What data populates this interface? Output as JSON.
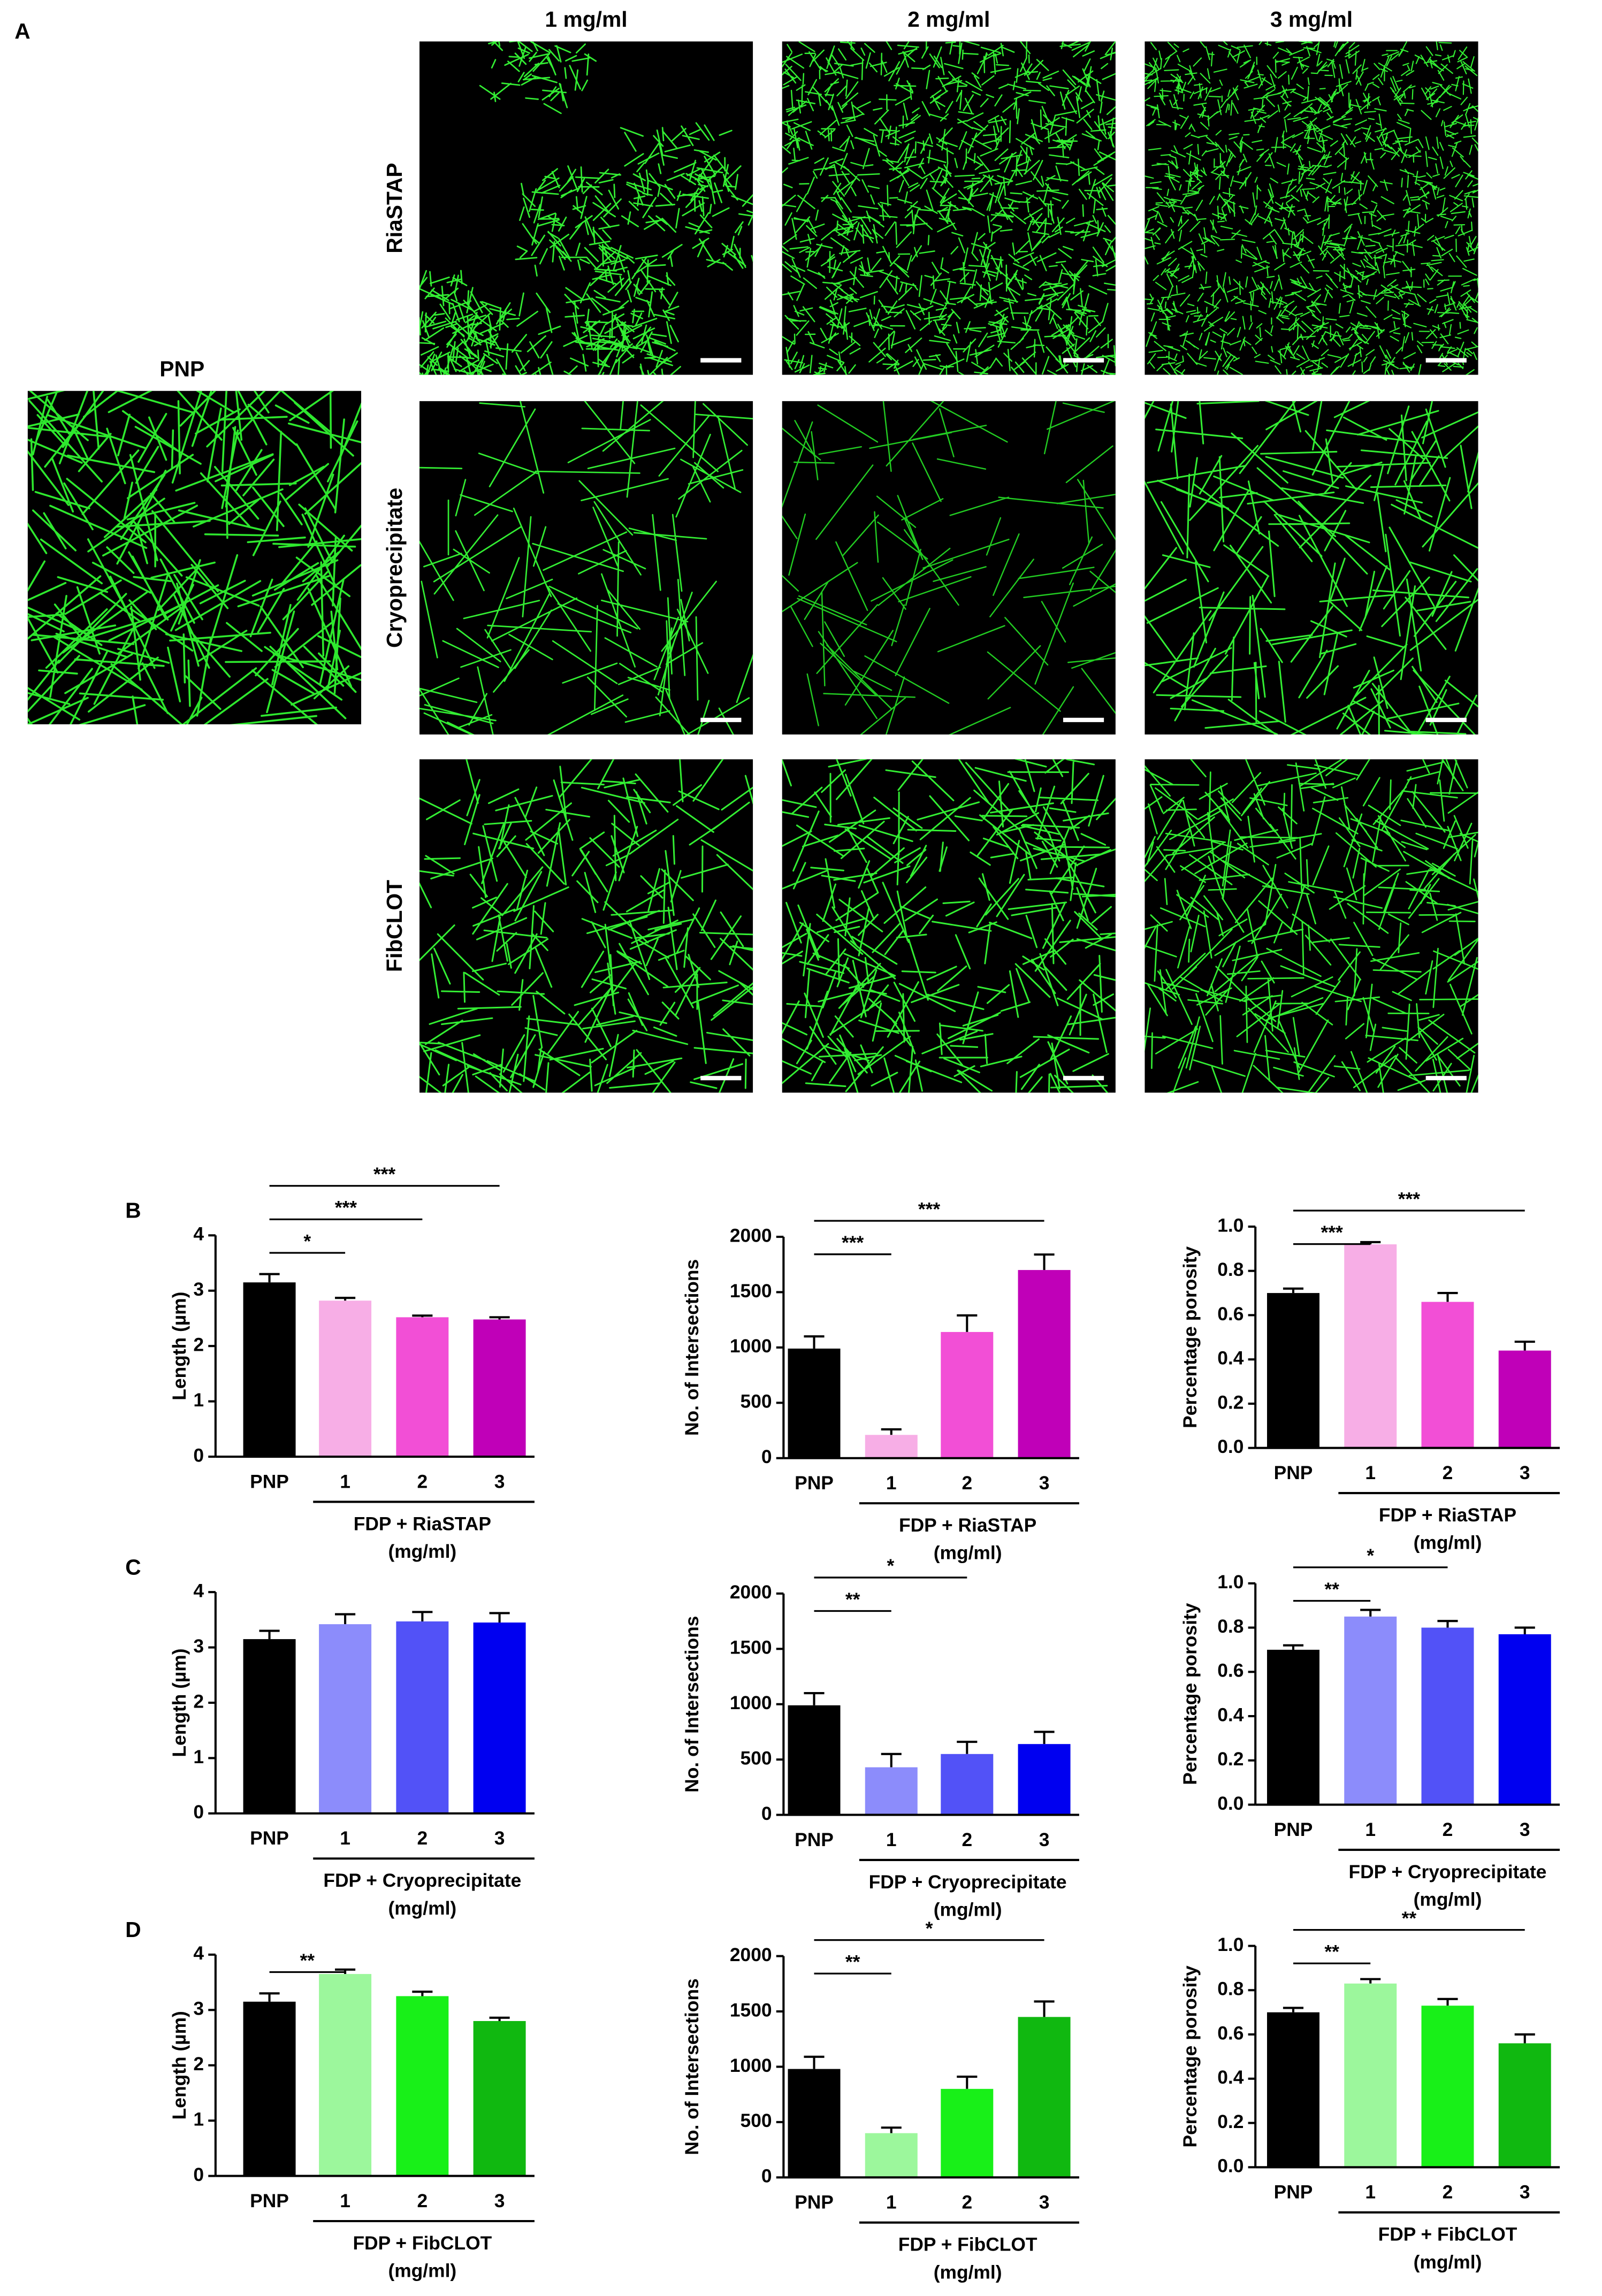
{
  "panel_a": {
    "label": "A",
    "columns": [
      "1 mg/ml",
      "2 mg/ml",
      "3 mg/ml"
    ],
    "rows": [
      "RiaSTAP",
      "Cryoprecipitate",
      "FibCLOT"
    ],
    "control": "PNP"
  },
  "chart_data": [
    {
      "type": "bar",
      "panel_label": "B",
      "ylabel": "Length (µm)",
      "categories": [
        "PNP",
        "1",
        "2",
        "3"
      ],
      "values": [
        3.15,
        2.82,
        2.52,
        2.48
      ],
      "errors": [
        0.15,
        0.05,
        0.03,
        0.04
      ],
      "colors": [
        "#000000",
        "#f7aee6",
        "#f24fd6",
        "#c000b8"
      ],
      "ylim": [
        0,
        4
      ],
      "yticks": [
        0,
        1,
        2,
        3,
        4
      ],
      "xlabel": [
        "FDP + RiaSTAP",
        "(mg/ml)"
      ],
      "annotations": [
        {
          "text": "*",
          "from": "PNP",
          "to": "1"
        },
        {
          "text": "***",
          "from": "PNP",
          "to": "2"
        },
        {
          "text": "***",
          "from": "PNP",
          "to": "3"
        }
      ]
    },
    {
      "type": "bar",
      "ylabel": "No. of Intersections",
      "categories": [
        "PNP",
        "1",
        "2",
        "3"
      ],
      "values": [
        990,
        210,
        1140,
        1700
      ],
      "errors": [
        110,
        50,
        150,
        140
      ],
      "colors": [
        "#000000",
        "#f7aee6",
        "#f24fd6",
        "#c000b8"
      ],
      "ylim": [
        0,
        2000
      ],
      "yticks": [
        0,
        500,
        1000,
        1500,
        2000
      ],
      "xlabel": [
        "FDP + RiaSTAP",
        "(mg/ml)"
      ],
      "annotations": [
        {
          "text": "***",
          "from": "PNP",
          "to": "1"
        },
        {
          "text": "***",
          "from": "PNP",
          "to": "3"
        }
      ]
    },
    {
      "type": "bar",
      "ylabel": "Percentage porosity",
      "categories": [
        "PNP",
        "1",
        "2",
        "3"
      ],
      "values": [
        0.7,
        0.92,
        0.66,
        0.44
      ],
      "errors": [
        0.02,
        0.01,
        0.04,
        0.04
      ],
      "colors": [
        "#000000",
        "#f7aee6",
        "#f24fd6",
        "#c000b8"
      ],
      "ylim": [
        0,
        1
      ],
      "yticks": [
        {
          "value": 0,
          "label": "0.0"
        },
        0.2,
        0.4,
        0.6,
        0.8,
        {
          "value": 1,
          "label": "1.0"
        }
      ],
      "xlabel": [
        "FDP + RiaSTAP",
        "(mg/ml)"
      ],
      "annotations": [
        {
          "text": "***",
          "from": "PNP",
          "to": "1"
        },
        {
          "text": "***",
          "from": "PNP",
          "to": "3"
        }
      ]
    },
    {
      "type": "bar",
      "panel_label": "C",
      "ylabel": "Length (µm)",
      "categories": [
        "PNP",
        "1",
        "2",
        "3"
      ],
      "values": [
        3.15,
        3.42,
        3.47,
        3.45
      ],
      "errors": [
        0.15,
        0.18,
        0.17,
        0.17
      ],
      "colors": [
        "#000000",
        "#8c8cfb",
        "#5252f7",
        "#0000f0"
      ],
      "ylim": [
        0,
        4
      ],
      "yticks": [
        0,
        1,
        2,
        3,
        4
      ],
      "xlabel": [
        "FDP + Cryoprecipitate",
        "(mg/ml)"
      ],
      "annotations": []
    },
    {
      "type": "bar",
      "ylabel": "No. of Intersections",
      "categories": [
        "PNP",
        "1",
        "2",
        "3"
      ],
      "values": [
        990,
        430,
        550,
        640
      ],
      "errors": [
        110,
        120,
        110,
        110
      ],
      "colors": [
        "#000000",
        "#8c8cfb",
        "#5252f7",
        "#0000f0"
      ],
      "ylim": [
        0,
        2000
      ],
      "yticks": [
        0,
        500,
        1000,
        1500,
        2000
      ],
      "xlabel": [
        "FDP + Cryoprecipitate",
        "(mg/ml)"
      ],
      "annotations": [
        {
          "text": "**",
          "from": "PNP",
          "to": "1"
        },
        {
          "text": "*",
          "from": "PNP",
          "to": "2"
        }
      ]
    },
    {
      "type": "bar",
      "ylabel": "Percentage porosity",
      "categories": [
        "PNP",
        "1",
        "2",
        "3"
      ],
      "values": [
        0.7,
        0.85,
        0.8,
        0.77
      ],
      "errors": [
        0.02,
        0.03,
        0.03,
        0.03
      ],
      "colors": [
        "#000000",
        "#8c8cfb",
        "#5252f7",
        "#0000f0"
      ],
      "ylim": [
        0,
        1
      ],
      "yticks": [
        {
          "value": 0,
          "label": "0.0"
        },
        0.2,
        0.4,
        0.6,
        0.8,
        {
          "value": 1,
          "label": "1.0"
        }
      ],
      "xlabel": [
        "FDP + Cryoprecipitate",
        "(mg/ml)"
      ],
      "annotations": [
        {
          "text": "**",
          "from": "PNP",
          "to": "1"
        },
        {
          "text": "*",
          "from": "PNP",
          "to": "2"
        }
      ]
    },
    {
      "type": "bar",
      "panel_label": "D",
      "ylabel": "Length (µm)",
      "categories": [
        "PNP",
        "1",
        "2",
        "3"
      ],
      "values": [
        3.15,
        3.65,
        3.25,
        2.8
      ],
      "errors": [
        0.15,
        0.08,
        0.08,
        0.06
      ],
      "colors": [
        "#000000",
        "#9cf79c",
        "#18f018",
        "#10b810"
      ],
      "ylim": [
        0,
        4
      ],
      "yticks": [
        0,
        1,
        2,
        3,
        4
      ],
      "xlabel": [
        "FDP + FibCLOT",
        "(mg/ml)"
      ],
      "annotations": [
        {
          "text": "**",
          "from": "PNP",
          "to": "1"
        }
      ]
    },
    {
      "type": "bar",
      "ylabel": "No. of Intersections",
      "categories": [
        "PNP",
        "1",
        "2",
        "3"
      ],
      "values": [
        980,
        400,
        800,
        1450
      ],
      "errors": [
        110,
        50,
        110,
        140
      ],
      "colors": [
        "#000000",
        "#9cf79c",
        "#18f018",
        "#10b810"
      ],
      "ylim": [
        0,
        2000
      ],
      "yticks": [
        0,
        500,
        1000,
        1500,
        2000
      ],
      "xlabel": [
        "FDP + FibCLOT",
        "(mg/ml)"
      ],
      "annotations": [
        {
          "text": "**",
          "from": "PNP",
          "to": "1"
        },
        {
          "text": "*",
          "from": "PNP",
          "to": "3"
        }
      ]
    },
    {
      "type": "bar",
      "ylabel": "Percentage porosity",
      "categories": [
        "PNP",
        "1",
        "2",
        "3"
      ],
      "values": [
        0.7,
        0.83,
        0.73,
        0.56
      ],
      "errors": [
        0.02,
        0.02,
        0.03,
        0.04
      ],
      "colors": [
        "#000000",
        "#9cf79c",
        "#18f018",
        "#10b810"
      ],
      "ylim": [
        0,
        1
      ],
      "yticks": [
        {
          "value": 0,
          "label": "0.0"
        },
        0.2,
        0.4,
        0.6,
        0.8,
        {
          "value": 1,
          "label": "1.0"
        }
      ],
      "xlabel": [
        "FDP + FibCLOT",
        "(mg/ml)"
      ],
      "annotations": [
        {
          "text": "**",
          "from": "PNP",
          "to": "1"
        },
        {
          "text": "**",
          "from": "PNP",
          "to": "3"
        }
      ]
    }
  ]
}
